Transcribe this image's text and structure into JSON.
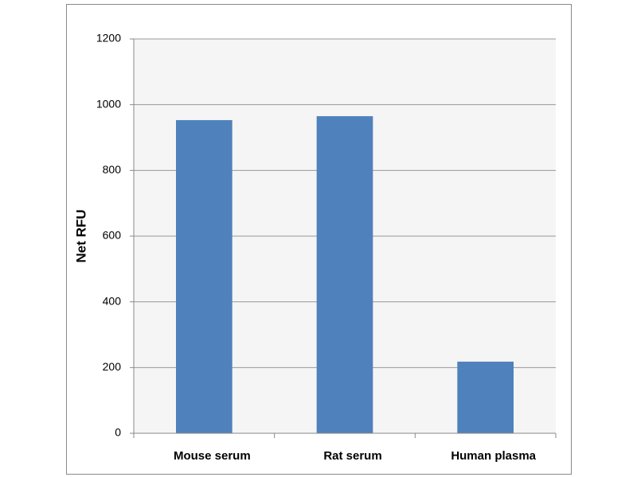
{
  "chart_data": {
    "type": "bar",
    "y_label": "Net RFU",
    "categories": [
      "Mouse serum",
      "Rat serum",
      "Human plasma"
    ],
    "values": [
      953,
      965,
      218
    ],
    "color": "#4f81bd",
    "ylim": [
      0,
      1200
    ],
    "yticks": [
      0,
      200,
      400,
      600,
      800,
      1000,
      1200
    ],
    "grid": true
  }
}
